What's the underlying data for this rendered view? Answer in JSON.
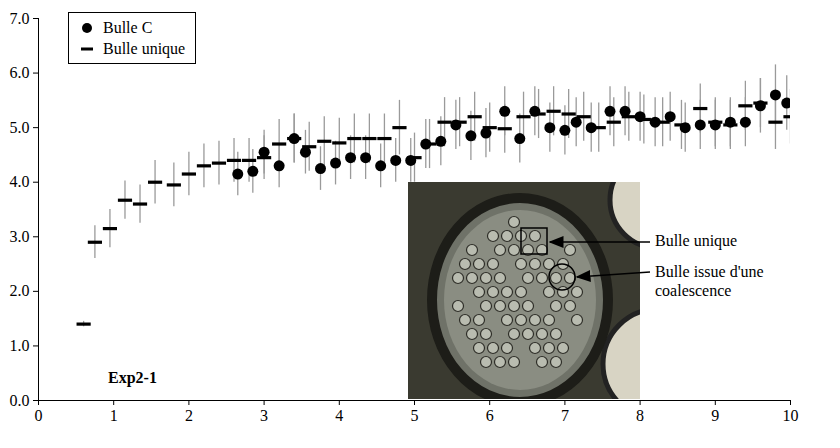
{
  "chart_data": {
    "type": "scatter",
    "xlim": [
      0,
      10
    ],
    "xticks": [
      0,
      1,
      2,
      3,
      4,
      5,
      6,
      7,
      8,
      9,
      10
    ],
    "ylim": [
      0,
      7
    ],
    "yticks": [
      0,
      1,
      2,
      3,
      4,
      5,
      6,
      7
    ],
    "grid": false,
    "legend": "top-left",
    "annotations": [
      "Exp2-1",
      "Bulle unique",
      "Bulle issue d'une coalescence"
    ],
    "series": [
      {
        "name": "Bulle C",
        "marker": "circle",
        "color": "#000000",
        "x": [
          2.65,
          2.85,
          3.0,
          3.2,
          3.4,
          3.55,
          3.75,
          3.95,
          4.15,
          4.35,
          4.55,
          4.75,
          4.95,
          5.15,
          5.35,
          5.55,
          5.75,
          5.95,
          6.2,
          6.4,
          6.6,
          6.8,
          7.0,
          7.15,
          7.35,
          7.6,
          7.8,
          8.0,
          8.2,
          8.4,
          8.6,
          8.8,
          9.0,
          9.2,
          9.4,
          9.6,
          9.8,
          9.95
        ],
        "values": [
          4.15,
          4.2,
          4.55,
          4.3,
          4.8,
          4.55,
          4.25,
          4.35,
          4.45,
          4.45,
          4.3,
          4.4,
          4.4,
          4.7,
          4.75,
          5.05,
          4.85,
          4.9,
          5.3,
          4.8,
          5.3,
          5.0,
          4.95,
          5.1,
          5.0,
          5.3,
          5.3,
          5.2,
          5.1,
          5.2,
          5.0,
          5.05,
          5.05,
          5.1,
          5.1,
          5.4,
          5.6,
          5.45
        ],
        "errors": [
          0.4,
          0.4,
          0.4,
          0.4,
          0.45,
          0.4,
          0.4,
          0.4,
          0.4,
          0.4,
          0.4,
          0.4,
          0.4,
          0.45,
          0.45,
          0.45,
          0.45,
          0.45,
          0.45,
          0.45,
          0.45,
          0.45,
          0.45,
          0.45,
          0.45,
          0.45,
          0.45,
          0.45,
          0.45,
          0.45,
          0.45,
          0.45,
          0.45,
          0.45,
          0.45,
          0.5,
          0.55,
          0.5
        ]
      },
      {
        "name": "Bulle unique",
        "marker": "dash",
        "color": "#000000",
        "x": [
          0.6,
          0.75,
          0.95,
          1.15,
          1.35,
          1.55,
          1.8,
          2.0,
          2.2,
          2.4,
          2.6,
          2.8,
          3.0,
          3.2,
          3.4,
          3.6,
          3.8,
          4.0,
          4.2,
          4.4,
          4.6,
          4.8,
          5.0,
          5.2,
          5.4,
          5.6,
          5.8,
          6.0,
          6.2,
          6.45,
          6.65,
          6.85,
          7.05,
          7.25,
          7.45,
          7.65,
          7.85,
          8.05,
          8.3,
          8.55,
          8.8,
          9.0,
          9.2,
          9.4,
          9.6,
          9.8,
          10.0
        ],
        "values": [
          1.4,
          2.9,
          3.15,
          3.67,
          3.6,
          4.0,
          3.95,
          4.15,
          4.3,
          4.35,
          4.4,
          4.4,
          4.45,
          4.7,
          4.8,
          4.65,
          4.75,
          4.72,
          4.8,
          4.8,
          4.8,
          5.0,
          4.45,
          4.7,
          5.1,
          5.1,
          5.2,
          5.0,
          4.98,
          5.2,
          5.25,
          5.3,
          5.25,
          5.2,
          5.0,
          5.1,
          5.2,
          5.15,
          5.1,
          5.05,
          5.35,
          5.1,
          5.05,
          5.4,
          5.45,
          5.1,
          5.2
        ],
        "errors": [
          0.05,
          0.3,
          0.35,
          0.35,
          0.35,
          0.4,
          0.4,
          0.4,
          0.4,
          0.4,
          0.4,
          0.4,
          0.4,
          0.45,
          0.45,
          0.45,
          0.45,
          0.45,
          0.45,
          0.45,
          0.45,
          0.5,
          0.45,
          0.45,
          0.45,
          0.45,
          0.45,
          0.45,
          0.45,
          0.45,
          0.45,
          0.45,
          0.45,
          0.45,
          0.45,
          0.45,
          0.45,
          0.45,
          0.45,
          0.45,
          0.45,
          0.45,
          0.45,
          0.45,
          0.45,
          0.5,
          0.5
        ]
      }
    ]
  }
}
